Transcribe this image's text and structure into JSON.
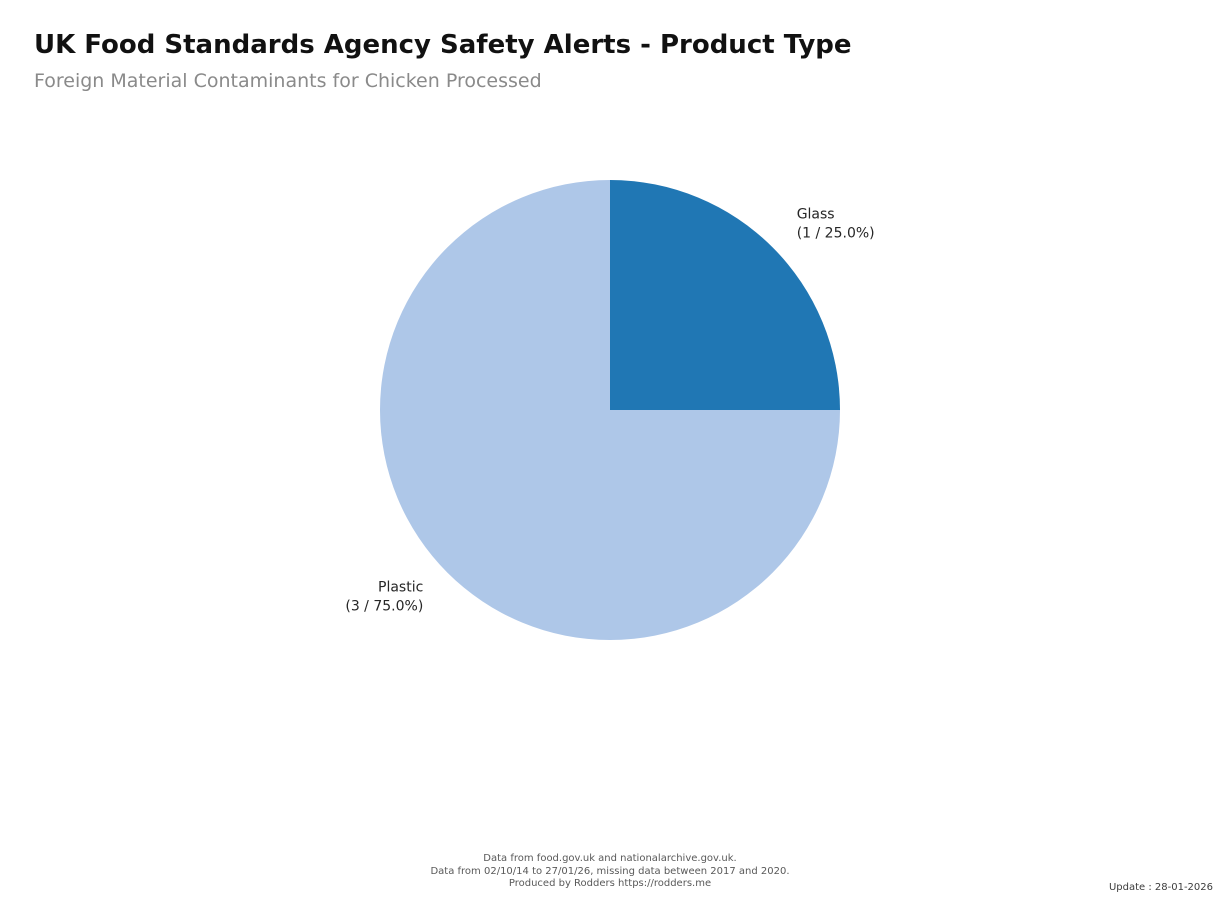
{
  "header": {
    "title": "UK Food Standards Agency Safety Alerts - Product Type",
    "subtitle": "Foreign Material Contaminants for Chicken Processed"
  },
  "chart_data": {
    "type": "pie",
    "title": "UK Food Standards Agency Safety Alerts - Product Type",
    "subtitle": "Foreign Material Contaminants for Chicken Processed",
    "slices": [
      {
        "label": "Glass",
        "count": 1,
        "pct": 25.0,
        "color": "#2077b4"
      },
      {
        "label": "Plastic",
        "count": 3,
        "pct": 75.0,
        "color": "#aec7e8"
      }
    ],
    "label_format": "label, (count / pct%)",
    "start_angle_deg": 0,
    "direction": "counterclockwise",
    "legend_position": "none",
    "colors": {
      "title_text": "#111111",
      "subtitle_text": "#8a8a8a",
      "slice_label_text": "#262626",
      "footer_text": "#595959",
      "background": "#ffffff"
    }
  },
  "footer": {
    "lines": [
      "Data from food.gov.uk and nationalarchive.gov.uk.",
      "Data from 02/10/14 to 27/01/26, missing data between 2017 and 2020.",
      "Produced by Rodders https://rodders.me"
    ],
    "update": "Update : 28-01-2026"
  }
}
